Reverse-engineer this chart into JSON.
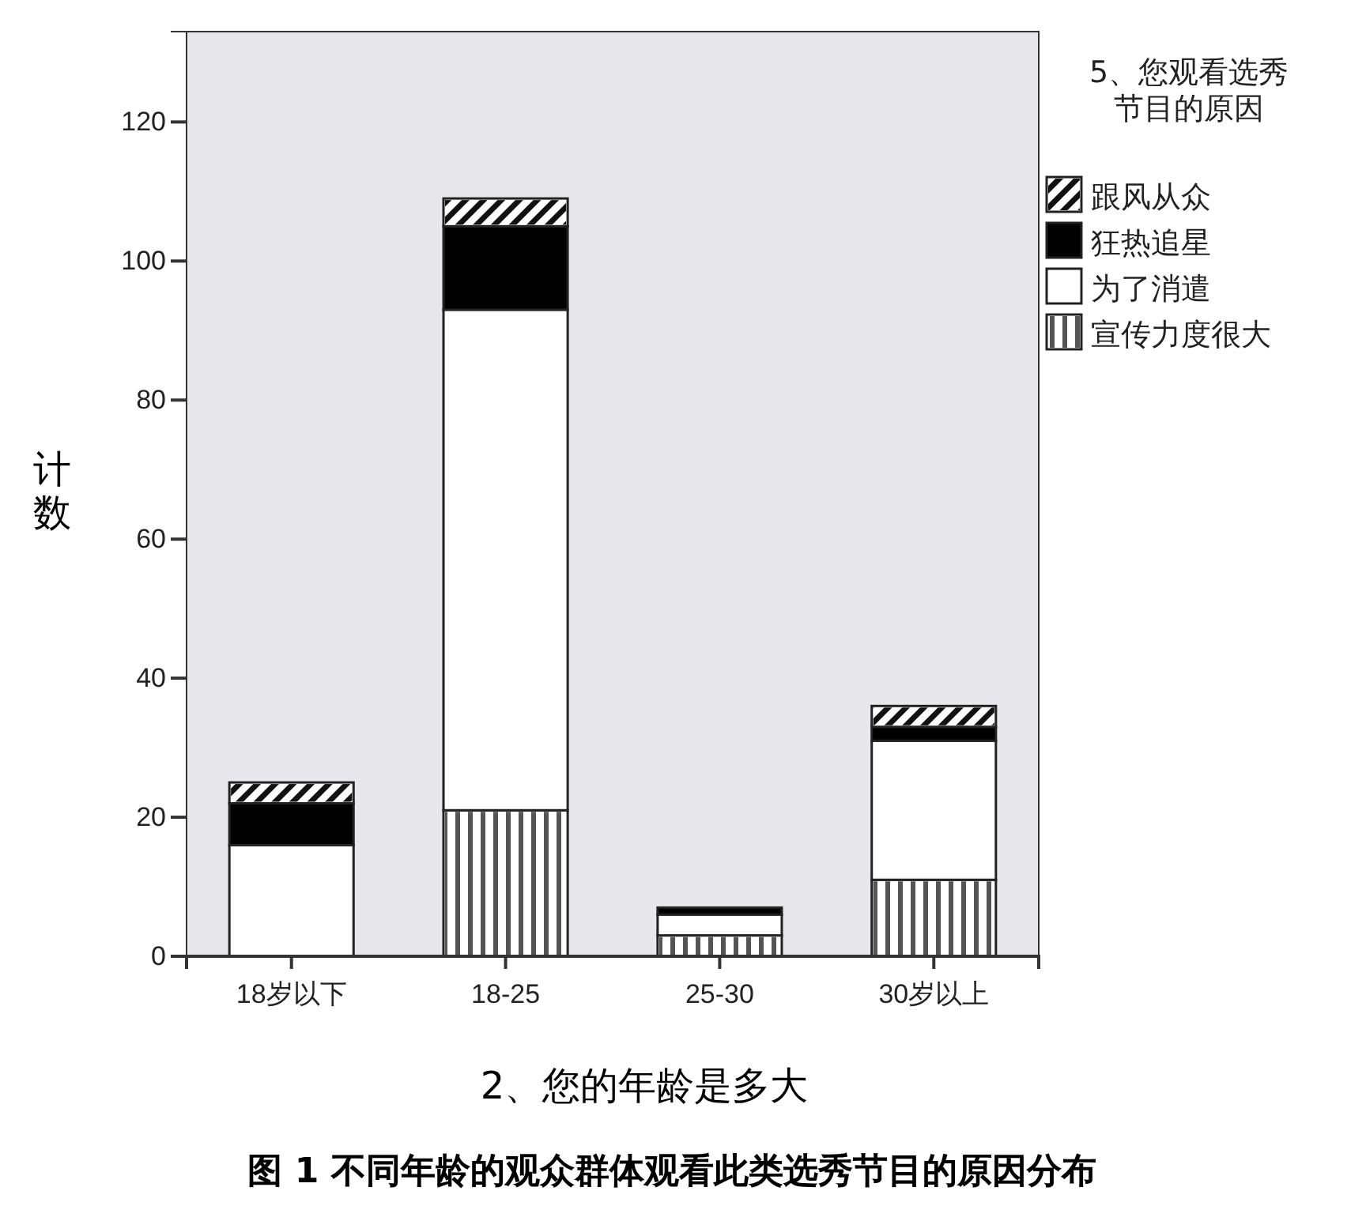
{
  "chart_data": {
    "type": "bar",
    "stacked": true,
    "title": "图 1 不同年龄的观众群体观看此类选秀节目的原因分布",
    "xlabel": "2、您的年龄是多大",
    "ylabel": "计数",
    "legend_title": "5、您观看选秀节目的原因",
    "legend": "right",
    "categories": [
      "18岁以下",
      "18-25",
      "25-30",
      "30岁以上"
    ],
    "series": [
      {
        "name": "宣传力度很大",
        "color": "#ffffff",
        "values": [
          0,
          21,
          3,
          11
        ]
      },
      {
        "name": "为了消遣",
        "color": "#ffffff",
        "values": [
          16,
          72,
          3,
          20
        ]
      },
      {
        "name": "狂热追星",
        "color": "#000000",
        "values": [
          6,
          12,
          1,
          2
        ]
      },
      {
        "name": "跟风从众",
        "color": "#ffffff",
        "values": [
          3,
          4,
          0,
          3
        ]
      }
    ],
    "ylim": [
      0,
      133
    ],
    "yticks": [
      0,
      20,
      40,
      60,
      80,
      100,
      120
    ],
    "grid": false
  }
}
